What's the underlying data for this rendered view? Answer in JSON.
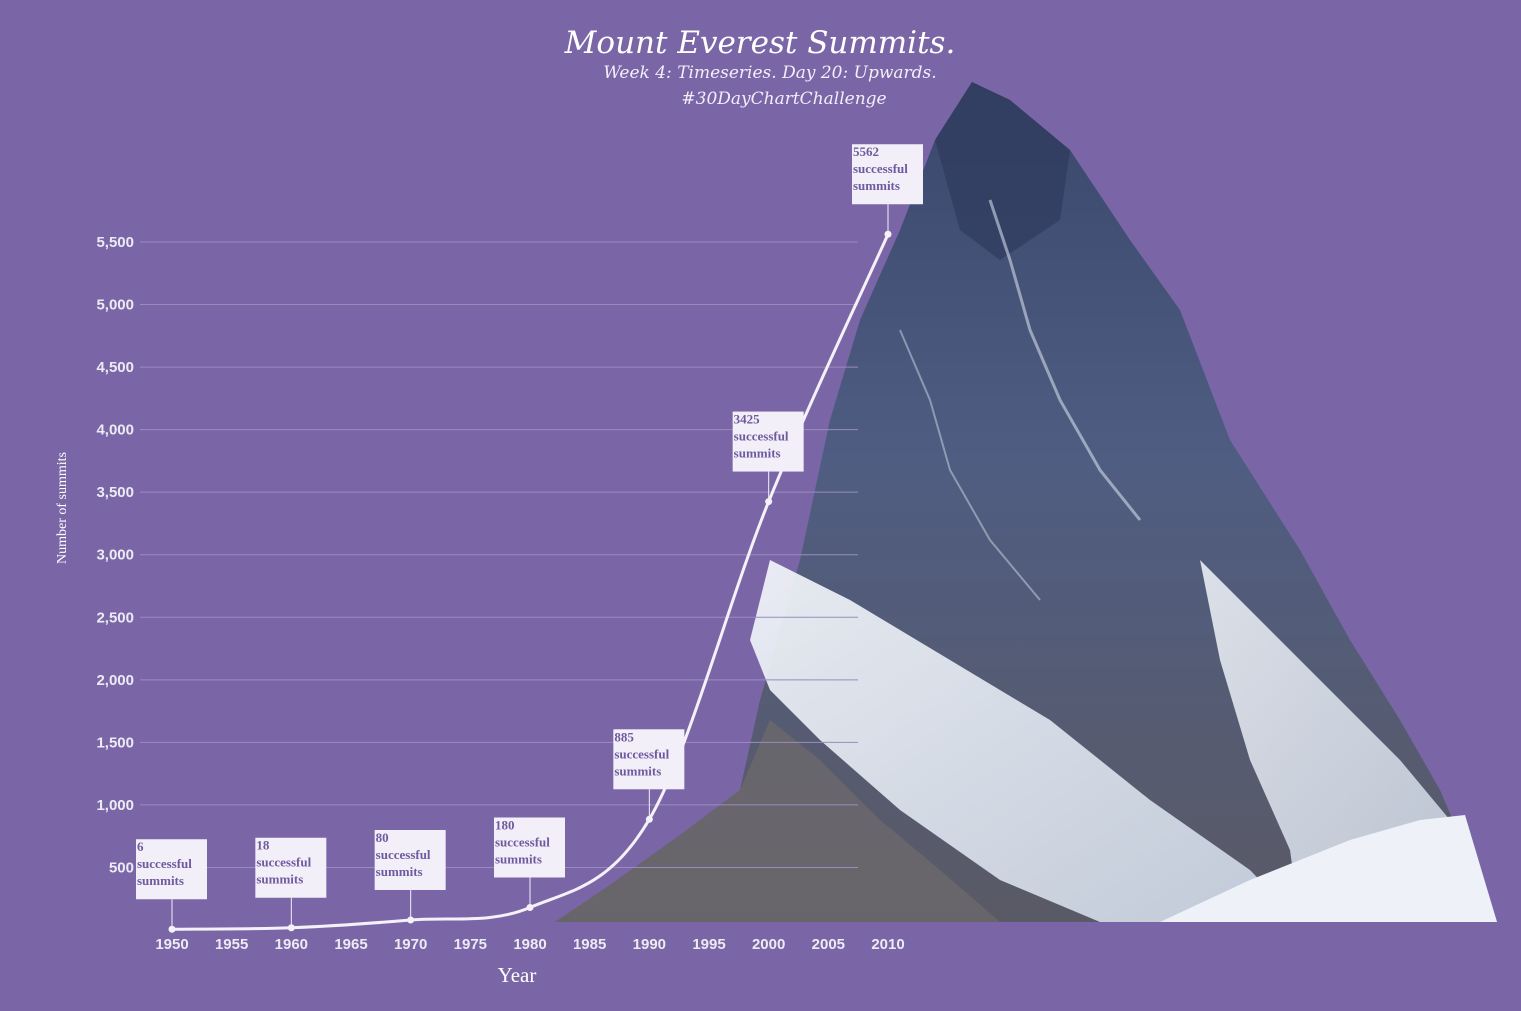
{
  "colors": {
    "background": "#7a66a7",
    "line": "#f4f1f8",
    "grid": "#9a8bbf",
    "annotation_box": "#f3eff8",
    "annotation_text": "#6f5aa0",
    "sky_shadow": "#3d4f7a",
    "snow": "#e8edf4"
  },
  "chart_data": {
    "type": "line",
    "title": "Mount Everest Summits.",
    "subtitle_line1": "Week 4: Timeseries. Day 20: Upwards.",
    "subtitle_line2": "#30DayChartChallenge",
    "xlabel": "Year",
    "ylabel": "Number of summits",
    "xlim": [
      1947,
      2011
    ],
    "ylim": [
      0,
      5700
    ],
    "x_ticks": [
      1950,
      1955,
      1960,
      1965,
      1970,
      1975,
      1980,
      1985,
      1990,
      1995,
      2000,
      2005,
      2010
    ],
    "x_tick_labels": [
      "1950",
      "1955",
      "1960",
      "1965",
      "1970",
      "1975",
      "1980",
      "1985",
      "1990",
      "1995",
      "2000",
      "2005",
      "2010"
    ],
    "y_ticks": [
      500,
      1000,
      1500,
      2000,
      2500,
      3000,
      3500,
      4000,
      4500,
      5000,
      5500
    ],
    "y_tick_labels": [
      "500",
      "1,000",
      "1,500",
      "2,000",
      "2,500",
      "3,000",
      "3,500",
      "4,000",
      "4,500",
      "5,000",
      "5,500"
    ],
    "grid": true,
    "series": [
      {
        "x": [
          1950,
          1960,
          1970,
          1980,
          1990,
          2000,
          2010
        ],
        "values": [
          6,
          18,
          80,
          180,
          885,
          3425,
          5562
        ]
      }
    ],
    "annotations": [
      {
        "x": 1950,
        "y": 6,
        "value": "6",
        "lines": [
          "successful",
          "summits"
        ]
      },
      {
        "x": 1960,
        "y": 18,
        "value": "18",
        "lines": [
          "successful",
          "summits"
        ]
      },
      {
        "x": 1970,
        "y": 80,
        "value": "80",
        "lines": [
          "successful",
          "summits"
        ]
      },
      {
        "x": 1980,
        "y": 180,
        "value": "180",
        "lines": [
          "successful",
          "summits"
        ]
      },
      {
        "x": 1990,
        "y": 885,
        "value": "885",
        "lines": [
          "successful",
          "summits"
        ]
      },
      {
        "x": 2000,
        "y": 3425,
        "value": "3425",
        "lines": [
          "successful",
          "summits"
        ]
      },
      {
        "x": 2010,
        "y": 5562,
        "value": "5562",
        "lines": [
          "successful",
          "summits"
        ]
      }
    ]
  }
}
